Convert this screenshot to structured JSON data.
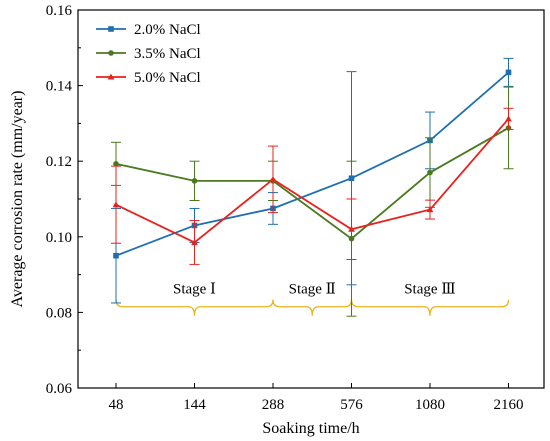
{
  "chart_data": {
    "type": "line",
    "xlabel": "Soaking time/h",
    "ylabel": "Average corrosion rate (mm/year)",
    "categories": [
      "48",
      "144",
      "288",
      "576",
      "1080",
      "2160"
    ],
    "ylim": [
      0.06,
      0.16
    ],
    "yticks": [
      "0.06",
      "0.08",
      "0.10",
      "0.12",
      "0.14",
      "0.16"
    ],
    "grid": false,
    "legend_position": "top-left",
    "series": [
      {
        "name": "2.0% NaCl",
        "color": "#1f6fb0",
        "marker": "square",
        "values": [
          0.095,
          0.103,
          0.1075,
          0.1155,
          0.1255,
          0.1435
        ],
        "errors": [
          0.0125,
          0.0045,
          0.0042,
          0.0282,
          0.0075,
          0.0037
        ]
      },
      {
        "name": "3.5% NaCl",
        "color": "#4a7a1e",
        "marker": "circle",
        "values": [
          0.1193,
          0.1148,
          0.1148,
          0.0995,
          0.117,
          0.1288
        ],
        "errors": [
          0.0057,
          0.0052,
          0.0052,
          0.0205,
          0.0092,
          0.0108
        ]
      },
      {
        "name": "5.0% NaCl",
        "color": "#e8211c",
        "marker": "triangle",
        "values": [
          0.1085,
          0.0985,
          0.1152,
          0.102,
          0.1072,
          0.1312
        ],
        "errors": [
          0.0102,
          0.0058,
          0.0088,
          0.008,
          0.0025,
          0.0028
        ]
      }
    ],
    "annotations": {
      "stages": [
        {
          "label": "Stage Ⅰ",
          "from": 0,
          "to": 2
        },
        {
          "label": "Stage Ⅱ",
          "from": 2,
          "to": 3
        },
        {
          "label": "Stage Ⅲ",
          "from": 3,
          "to": 5
        }
      ],
      "brace_value": 0.0815,
      "brace_color": "#e8b41e"
    }
  }
}
